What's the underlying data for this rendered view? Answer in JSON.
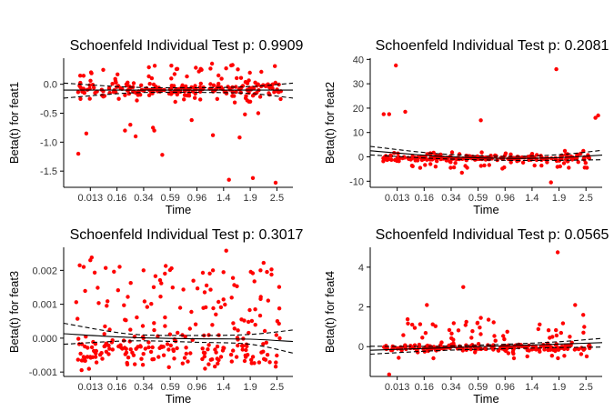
{
  "chart_data": [
    {
      "type": "scatter",
      "title": "Schoenfeld Individual Test p: 0.9909",
      "xlabel": "Time",
      "ylabel": "Beta(t) for feat1",
      "xticks": [
        "0.013",
        "0.16",
        "0.34",
        "0.59",
        "0.96",
        "1.4",
        "1.9",
        "2.5"
      ],
      "xlim": [
        0,
        8.6
      ],
      "yticks": [
        0.0,
        -0.5,
        -1.0,
        -1.5
      ],
      "ylim": [
        -1.78,
        0.45
      ],
      "seed": 11,
      "cluster": {
        "center": -0.1,
        "spread": 0.08,
        "count": 150
      },
      "scatter_band": {
        "low": -0.35,
        "high": 0.38,
        "count": 80
      },
      "outliers": [
        [
          0.55,
          -1.2
        ],
        [
          0.85,
          -0.85
        ],
        [
          2.3,
          -0.8
        ],
        [
          2.7,
          -0.9
        ],
        [
          2.5,
          -0.7
        ],
        [
          3.35,
          -0.75
        ],
        [
          3.4,
          -0.8
        ],
        [
          3.7,
          -1.22
        ],
        [
          4.8,
          -0.62
        ],
        [
          5.6,
          -0.88
        ],
        [
          6.2,
          -1.65
        ],
        [
          6.6,
          -0.92
        ],
        [
          6.95,
          -0.3
        ],
        [
          7.1,
          -1.62
        ],
        [
          7.3,
          -0.5
        ],
        [
          7.95,
          -1.7
        ],
        [
          6.8,
          -0.52
        ]
      ],
      "fit": [
        [
          0,
          -0.1
        ],
        [
          8.6,
          -0.1
        ]
      ],
      "ci_upper": [
        [
          0,
          0.02
        ],
        [
          2.5,
          -0.05
        ],
        [
          5,
          -0.06
        ],
        [
          7,
          -0.04
        ],
        [
          8.6,
          0.02
        ]
      ],
      "ci_lower": [
        [
          0,
          -0.24
        ],
        [
          2.5,
          -0.15
        ],
        [
          5,
          -0.14
        ],
        [
          7,
          -0.16
        ],
        [
          8.6,
          -0.24
        ]
      ],
      "point_color": "#ff0000",
      "line_color": "#000000"
    },
    {
      "type": "scatter",
      "title": "Schoenfeld Individual Test p: 0.2081",
      "xlabel": "Time",
      "ylabel": "Beta(t) for feat2",
      "xticks": [
        "0.013",
        "0.16",
        "0.34",
        "0.59",
        "0.96",
        "1.4",
        "1.9",
        "2.5"
      ],
      "xlim": [
        0,
        8.6
      ],
      "yticks": [
        40,
        30,
        20,
        10,
        0,
        -10
      ],
      "ylim": [
        -12.5,
        40.5
      ],
      "seed": 23,
      "cluster": {
        "center": -0.5,
        "spread": 0.8,
        "count": 170
      },
      "scatter_band": {
        "low": -4.5,
        "high": 2.5,
        "count": 70
      },
      "outliers": [
        [
          0.5,
          17.5
        ],
        [
          0.7,
          17.5
        ],
        [
          0.95,
          37.5
        ],
        [
          1.3,
          18.5
        ],
        [
          4.1,
          15.0
        ],
        [
          6.9,
          36.0
        ],
        [
          8.35,
          16.0
        ],
        [
          8.45,
          17.0
        ],
        [
          3.4,
          -6.5
        ],
        [
          6.7,
          -10.5
        ],
        [
          1.85,
          -4.5
        ],
        [
          4.9,
          -4.8
        ]
      ],
      "fit": [
        [
          0,
          2.5
        ],
        [
          2.5,
          0.3
        ],
        [
          5,
          -0.6
        ],
        [
          7,
          -0.3
        ],
        [
          8.6,
          0.7
        ]
      ],
      "ci_upper": [
        [
          0,
          4.3
        ],
        [
          2.5,
          1.3
        ],
        [
          5,
          0.2
        ],
        [
          7,
          0.9
        ],
        [
          8.6,
          2.7
        ]
      ],
      "ci_lower": [
        [
          0,
          0.8
        ],
        [
          2.5,
          -0.7
        ],
        [
          5,
          -1.4
        ],
        [
          7,
          -1.4
        ],
        [
          8.6,
          -1.2
        ]
      ],
      "point_color": "#ff0000",
      "line_color": "#000000"
    },
    {
      "type": "scatter",
      "title": "Schoenfeld Individual Test p: 0.3017",
      "xlabel": "Time",
      "ylabel": "Beta(t) for feat3",
      "xticks": [
        "0.013",
        "0.16",
        "0.34",
        "0.59",
        "0.96",
        "1.4",
        "1.9",
        "2.5"
      ],
      "xlim": [
        0,
        8.6
      ],
      "yticks": [
        0.002,
        0.001,
        0.0,
        -0.001
      ],
      "ylim": [
        -0.00113,
        0.00268
      ],
      "seed": 37,
      "cluster": {
        "center": -0.0004,
        "spread": 0.00035,
        "count": 170
      },
      "scatter_band": {
        "low": 0.0002,
        "high": 0.0022,
        "count": 90
      },
      "outliers": [
        [
          0.6,
          0.00215
        ],
        [
          1.05,
          0.00238
        ],
        [
          1.0,
          0.0023
        ],
        [
          0.75,
          0.0021
        ],
        [
          6.1,
          0.00258
        ],
        [
          7.5,
          0.00222
        ],
        [
          5.6,
          0.002
        ]
      ],
      "fit": [
        [
          0,
          0.00013
        ],
        [
          2.5,
          2e-05
        ],
        [
          5,
          -2e-05
        ],
        [
          7,
          -3e-05
        ],
        [
          8.6,
          -0.0001
        ]
      ],
      "ci_upper": [
        [
          0,
          0.00044
        ],
        [
          2.5,
          0.00012
        ],
        [
          5,
          8e-05
        ],
        [
          7,
          0.00011
        ],
        [
          8.6,
          0.00024
        ]
      ],
      "ci_lower": [
        [
          0,
          -0.00018
        ],
        [
          2.5,
          -8e-05
        ],
        [
          5,
          -0.00012
        ],
        [
          7,
          -0.00018
        ],
        [
          8.6,
          -0.00044
        ]
      ],
      "point_color": "#ff0000",
      "line_color": "#000000"
    },
    {
      "type": "scatter",
      "title": "Schoenfeld Individual Test p: 0.0565",
      "xlabel": "Time",
      "ylabel": "Beta(t) for feat4",
      "xticks": [
        "0.013",
        "0.16",
        "0.34",
        "0.59",
        "0.96",
        "1.4",
        "1.9",
        "2.5"
      ],
      "xlim": [
        0,
        8.6
      ],
      "yticks": [
        4,
        2,
        0
      ],
      "ylim": [
        -1.5,
        5.0
      ],
      "seed": 53,
      "cluster": {
        "center": -0.05,
        "spread": 0.12,
        "count": 170
      },
      "scatter_band": {
        "low": -0.6,
        "high": 1.4,
        "count": 75
      },
      "outliers": [
        [
          2.1,
          2.1
        ],
        [
          3.45,
          3.0
        ],
        [
          6.95,
          4.75
        ],
        [
          7.6,
          2.1
        ],
        [
          7.9,
          1.6
        ],
        [
          0.7,
          -1.4
        ],
        [
          4.1,
          1.45
        ]
      ],
      "fit": [
        [
          0,
          -0.18
        ],
        [
          8.6,
          0.2
        ]
      ],
      "ci_upper": [
        [
          0,
          0.02
        ],
        [
          2.5,
          0.02
        ],
        [
          5,
          0.12
        ],
        [
          7,
          0.25
        ],
        [
          8.6,
          0.42
        ]
      ],
      "ci_lower": [
        [
          0,
          -0.38
        ],
        [
          2.5,
          -0.2
        ],
        [
          5,
          -0.1
        ],
        [
          7,
          -0.05
        ],
        [
          8.6,
          -0.02
        ]
      ],
      "point_color": "#ff0000",
      "line_color": "#000000"
    }
  ]
}
